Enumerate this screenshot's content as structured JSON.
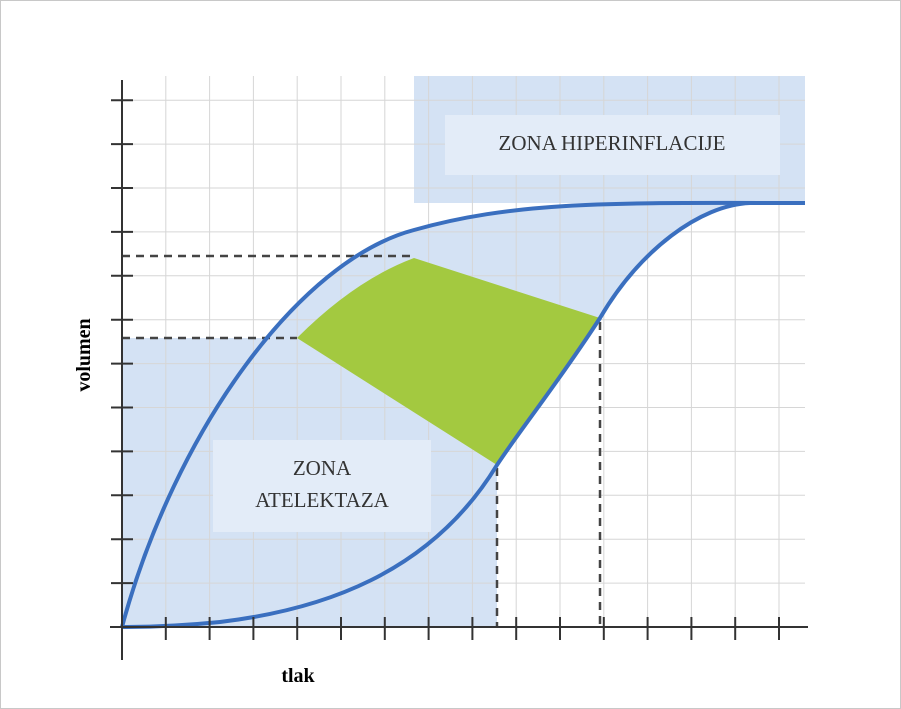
{
  "diagram": {
    "axes": {
      "x_label": "tlak",
      "y_label": "volumen"
    },
    "zones": {
      "atelectasis": {
        "line1": "ZONA",
        "line2": "ATELEKTAZA"
      },
      "hyperinflation": {
        "label": "ZONA HIPERINFLACIJE"
      }
    },
    "colors": {
      "zone_fill": "#d4e2f4",
      "label_box": "#e3ecf8",
      "safe_zone": "#a3c940",
      "curve": "#3a6fbf",
      "grid": "#d6d6d6",
      "axis": "#333333",
      "dashed": "#444444"
    }
  }
}
